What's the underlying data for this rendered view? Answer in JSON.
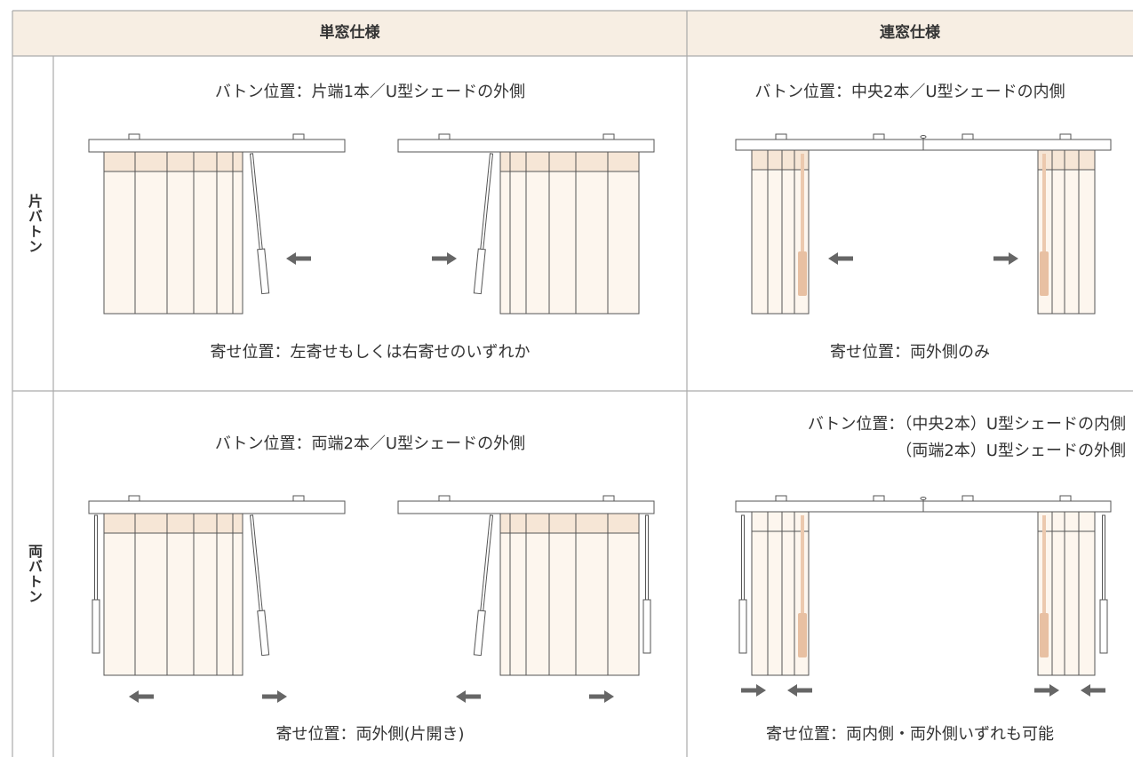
{
  "header": {
    "columns": [
      "単窓仕様",
      "連窓仕様"
    ]
  },
  "rows": [
    {
      "label": "片バトン",
      "cells": [
        {
          "baton": [
            "バトン位置：片端1本／U型シェードの外側"
          ],
          "gather": "寄せ位置：左寄せもしくは右寄せのいずれか"
        },
        {
          "baton": [
            "バトン位置：中央2本／U型シェードの内側"
          ],
          "gather": "寄せ位置：両外側のみ"
        }
      ]
    },
    {
      "label": "両バトン",
      "cells": [
        {
          "baton": [
            "バトン位置：両端2本／U型シェードの外側"
          ],
          "gather": "寄せ位置：両外側(片開き)"
        },
        {
          "baton": [
            "バトン位置：（中央2本）U型シェードの内側",
            "（両端2本）U型シェードの外側"
          ],
          "gather": "寄せ位置：両内側・両外側いずれも可能"
        }
      ]
    }
  ]
}
